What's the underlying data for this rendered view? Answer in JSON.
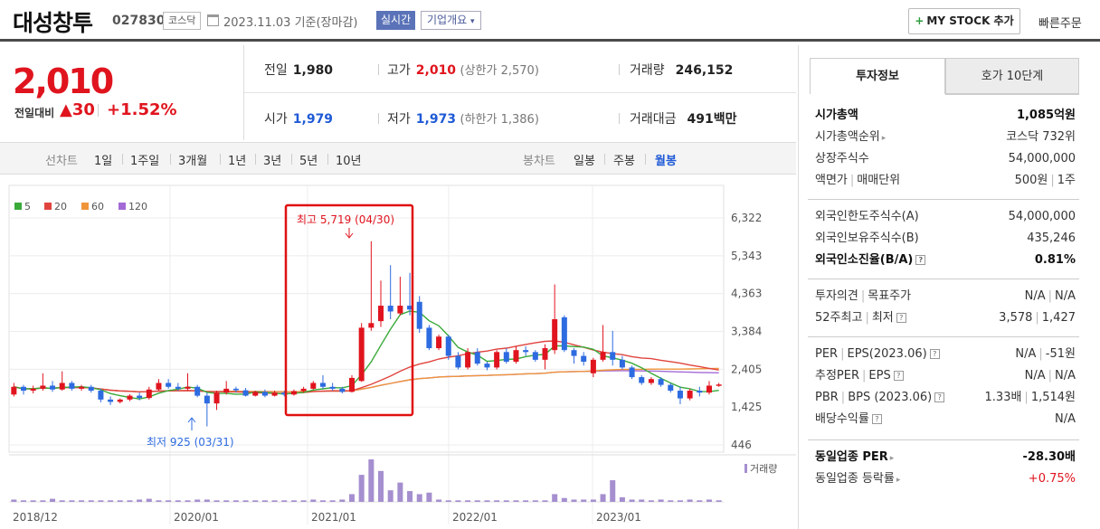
{
  "header": {
    "name": "대성창투",
    "code": "027830",
    "market": "코스닥",
    "base_date": "2023.11.03  기준(장마감)",
    "realtime": "실시간",
    "company": "기업개요",
    "mystock": "MY STOCK 추가",
    "quickorder": "빠른주문"
  },
  "price": {
    "current": "2,010",
    "change_label": "전일대비",
    "change": "▲30",
    "change_pct": "+1.52%",
    "prev_label": "전일",
    "prev": "1,980",
    "high_label": "고가",
    "high": "2,010",
    "upper_limit": "(상한가 2,570)",
    "volume_label": "거래량",
    "volume": "246,152",
    "open_label": "시가",
    "open": "1,979",
    "low_label": "저가",
    "low": "1,973",
    "lower_limit": "(하한가 1,386)",
    "amount_label": "거래대금",
    "amount": "491",
    "amount_unit": "백만"
  },
  "period_bar": {
    "line_label": "선차트",
    "line_items": [
      "1일",
      "1주일",
      "3개월",
      "1년",
      "3년",
      "5년",
      "10년"
    ],
    "candle_label": "봉차트",
    "candle_items": [
      "일봉",
      "주봉",
      "월봉"
    ],
    "active_candle": "월봉"
  },
  "chart_data": {
    "type": "candlestick",
    "legend": [
      {
        "name": "5",
        "color": "#3aaa3a"
      },
      {
        "name": "20",
        "color": "#e0443e"
      },
      {
        "name": "60",
        "color": "#f0953a"
      },
      {
        "name": "120",
        "color": "#a36ad6"
      }
    ],
    "y_ticks": [
      6322,
      5343,
      4363,
      3384,
      2405,
      1425,
      446
    ],
    "x_ticks": [
      "2018/12",
      "2020/01",
      "2021/01",
      "2022/01",
      "2023/01"
    ],
    "ylim": [
      446,
      6322
    ],
    "max_annotation": "최고 5,719 (04/30)",
    "min_annotation": "최저 925 (03/31)",
    "volume_label": "거래량",
    "candles": [
      {
        "o": 1750,
        "c": 1950,
        "h": 2050,
        "l": 1700
      },
      {
        "o": 1950,
        "c": 1850,
        "h": 2000,
        "l": 1750
      },
      {
        "o": 1850,
        "c": 1900,
        "h": 1980,
        "l": 1780
      },
      {
        "o": 1900,
        "c": 1980,
        "h": 2300,
        "l": 1850
      },
      {
        "o": 1980,
        "c": 1880,
        "h": 2100,
        "l": 1820
      },
      {
        "o": 1880,
        "c": 2050,
        "h": 2350,
        "l": 1850
      },
      {
        "o": 2050,
        "c": 1900,
        "h": 2100,
        "l": 1850
      },
      {
        "o": 1900,
        "c": 1950,
        "h": 2000,
        "l": 1850
      },
      {
        "o": 1950,
        "c": 1850,
        "h": 2000,
        "l": 1800
      },
      {
        "o": 1850,
        "c": 1620,
        "h": 1900,
        "l": 1550
      },
      {
        "o": 1620,
        "c": 1560,
        "h": 1700,
        "l": 1480
      },
      {
        "o": 1560,
        "c": 1620,
        "h": 1650,
        "l": 1520
      },
      {
        "o": 1620,
        "c": 1720,
        "h": 1760,
        "l": 1580
      },
      {
        "o": 1720,
        "c": 1660,
        "h": 1800,
        "l": 1600
      },
      {
        "o": 1660,
        "c": 1880,
        "h": 1950,
        "l": 1620
      },
      {
        "o": 1880,
        "c": 2050,
        "h": 2150,
        "l": 1850
      },
      {
        "o": 2050,
        "c": 1950,
        "h": 2150,
        "l": 1900
      },
      {
        "o": 1950,
        "c": 1900,
        "h": 2050,
        "l": 1850
      },
      {
        "o": 1900,
        "c": 1950,
        "h": 2300,
        "l": 1850
      },
      {
        "o": 1950,
        "c": 1720,
        "h": 2000,
        "l": 1680
      },
      {
        "o": 1720,
        "c": 1520,
        "h": 1800,
        "l": 925
      },
      {
        "o": 1520,
        "c": 1800,
        "h": 1850,
        "l": 1350
      },
      {
        "o": 1800,
        "c": 1900,
        "h": 2100,
        "l": 1750
      },
      {
        "o": 1900,
        "c": 1860,
        "h": 1950,
        "l": 1800
      },
      {
        "o": 1860,
        "c": 1720,
        "h": 1920,
        "l": 1700
      },
      {
        "o": 1720,
        "c": 1820,
        "h": 1850,
        "l": 1700
      },
      {
        "o": 1820,
        "c": 1720,
        "h": 1880,
        "l": 1680
      },
      {
        "o": 1720,
        "c": 1800,
        "h": 1850,
        "l": 1700
      },
      {
        "o": 1800,
        "c": 1750,
        "h": 1850,
        "l": 1700
      },
      {
        "o": 1750,
        "c": 1840,
        "h": 1880,
        "l": 1720
      },
      {
        "o": 1840,
        "c": 1900,
        "h": 1950,
        "l": 1800
      },
      {
        "o": 1900,
        "c": 2050,
        "h": 2100,
        "l": 1880
      },
      {
        "o": 2050,
        "c": 1950,
        "h": 2250,
        "l": 1900
      },
      {
        "o": 1950,
        "c": 1900,
        "h": 2050,
        "l": 1850
      },
      {
        "o": 1900,
        "c": 1820,
        "h": 1950,
        "l": 1780
      },
      {
        "o": 1820,
        "c": 2180,
        "h": 2250,
        "l": 1800
      },
      {
        "o": 2100,
        "c": 3480,
        "h": 3600,
        "l": 2080
      },
      {
        "o": 3480,
        "c": 3600,
        "h": 5719,
        "l": 3400
      },
      {
        "o": 3650,
        "c": 4050,
        "h": 4700,
        "l": 3500
      },
      {
        "o": 4050,
        "c": 3900,
        "h": 5100,
        "l": 3700
      },
      {
        "o": 3850,
        "c": 4050,
        "h": 4800,
        "l": 3800
      },
      {
        "o": 4050,
        "c": 3950,
        "h": 4900,
        "l": 3800
      },
      {
        "o": 4150,
        "c": 3450,
        "h": 4300,
        "l": 3350
      },
      {
        "o": 3480,
        "c": 2950,
        "h": 3550,
        "l": 2900
      },
      {
        "o": 2950,
        "c": 3250,
        "h": 3300,
        "l": 2900
      },
      {
        "o": 3250,
        "c": 2750,
        "h": 3300,
        "l": 2650
      },
      {
        "o": 2750,
        "c": 2450,
        "h": 2850,
        "l": 2400
      },
      {
        "o": 2450,
        "c": 2850,
        "h": 2950,
        "l": 2400
      },
      {
        "o": 2850,
        "c": 2550,
        "h": 2950,
        "l": 2500
      },
      {
        "o": 2550,
        "c": 2450,
        "h": 2600,
        "l": 2380
      },
      {
        "o": 2450,
        "c": 2850,
        "h": 2900,
        "l": 2400
      },
      {
        "o": 2850,
        "c": 2600,
        "h": 2950,
        "l": 2550
      },
      {
        "o": 2600,
        "c": 2900,
        "h": 3000,
        "l": 2550
      },
      {
        "o": 2900,
        "c": 2850,
        "h": 3000,
        "l": 2750
      },
      {
        "o": 2850,
        "c": 2650,
        "h": 2900,
        "l": 2600
      },
      {
        "o": 2650,
        "c": 2950,
        "h": 3050,
        "l": 2400
      },
      {
        "o": 2900,
        "c": 3700,
        "h": 4600,
        "l": 2800
      },
      {
        "o": 3750,
        "c": 2900,
        "h": 3800,
        "l": 2850
      },
      {
        "o": 2900,
        "c": 2750,
        "h": 2950,
        "l": 2550
      },
      {
        "o": 2750,
        "c": 2600,
        "h": 2850,
        "l": 2500
      },
      {
        "o": 2300,
        "c": 2650,
        "h": 2700,
        "l": 2200
      },
      {
        "o": 2650,
        "c": 2850,
        "h": 3550,
        "l": 2600
      },
      {
        "o": 2850,
        "c": 2650,
        "h": 3400,
        "l": 2500
      },
      {
        "o": 2650,
        "c": 2450,
        "h": 2750,
        "l": 2400
      },
      {
        "o": 2450,
        "c": 2200,
        "h": 2500,
        "l": 2150
      },
      {
        "o": 2200,
        "c": 2050,
        "h": 2250,
        "l": 2000
      },
      {
        "o": 2050,
        "c": 2150,
        "h": 2200,
        "l": 2000
      },
      {
        "o": 2150,
        "c": 2000,
        "h": 2200,
        "l": 1950
      },
      {
        "o": 2000,
        "c": 1850,
        "h": 2050,
        "l": 1800
      },
      {
        "o": 1850,
        "c": 1650,
        "h": 1950,
        "l": 1500
      },
      {
        "o": 1650,
        "c": 1850,
        "h": 1900,
        "l": 1600
      },
      {
        "o": 1850,
        "c": 1800,
        "h": 1950,
        "l": 1700
      },
      {
        "o": 1800,
        "c": 1980,
        "h": 2100,
        "l": 1750
      },
      {
        "o": 1980,
        "c": 2010,
        "h": 2050,
        "l": 1950
      }
    ],
    "volumes": [
      3,
      2,
      2,
      2,
      4,
      2,
      2,
      2,
      2,
      2,
      2,
      2,
      2,
      3,
      4,
      2,
      2,
      2,
      2,
      3,
      3,
      2,
      2,
      2,
      2,
      2,
      2,
      2,
      2,
      2,
      2,
      3,
      2,
      2,
      3,
      10,
      35,
      55,
      40,
      15,
      25,
      14,
      10,
      12,
      3,
      2,
      2,
      2,
      2,
      2,
      2,
      2,
      2,
      2,
      2,
      2,
      10,
      5,
      3,
      3,
      3,
      10,
      28,
      6,
      3,
      3,
      2,
      3,
      2,
      2,
      3,
      2,
      3,
      2
    ]
  },
  "right_panel": {
    "tab_invest": "투자정보",
    "tab_hoga": "호가 10단계",
    "group1": [
      {
        "k": "시가총액",
        "v": "1,085억원",
        "bold": true
      },
      {
        "k": "시가총액순위",
        "v": "코스닥 732위",
        "arrow": true
      },
      {
        "k": "상장주식수",
        "v": "54,000,000"
      },
      {
        "k": "액면가",
        "k2": "매매단위",
        "v": "500원",
        "v2": "1주"
      }
    ],
    "group2": [
      {
        "k": "외국인한도주식수(A)",
        "v": "54,000,000"
      },
      {
        "k": "외국인보유주식수(B)",
        "v": "435,246"
      },
      {
        "k": "외국인소진율(B/A)",
        "v": "0.81%",
        "bold": true,
        "help": true
      }
    ],
    "group3": [
      {
        "k": "투자의견",
        "k2": "목표주가",
        "v": "N/A",
        "v2": "N/A"
      },
      {
        "k": "52주최고",
        "k2": "최저",
        "v": "3,578",
        "v2": "1,427",
        "help": true
      }
    ],
    "group4": [
      {
        "k": "PER",
        "k2": "EPS(2023.06)",
        "v": "N/A",
        "v2": "-51원",
        "help": true
      },
      {
        "k": "추정PER",
        "k2": "EPS",
        "v": "N/A",
        "v2": "N/A",
        "help": true
      },
      {
        "k": "PBR",
        "k2": "BPS (2023.06)",
        "v": "1.33배",
        "v2": "1,514원",
        "help": true
      },
      {
        "k": "배당수익률",
        "v": "N/A",
        "help": true
      }
    ],
    "group5": [
      {
        "k": "동일업종 PER",
        "v": "-28.30배",
        "bold": true,
        "arrow": true
      },
      {
        "k": "동일업종 등락률",
        "v": "+0.75%",
        "red": true,
        "arrow": true
      }
    ]
  }
}
